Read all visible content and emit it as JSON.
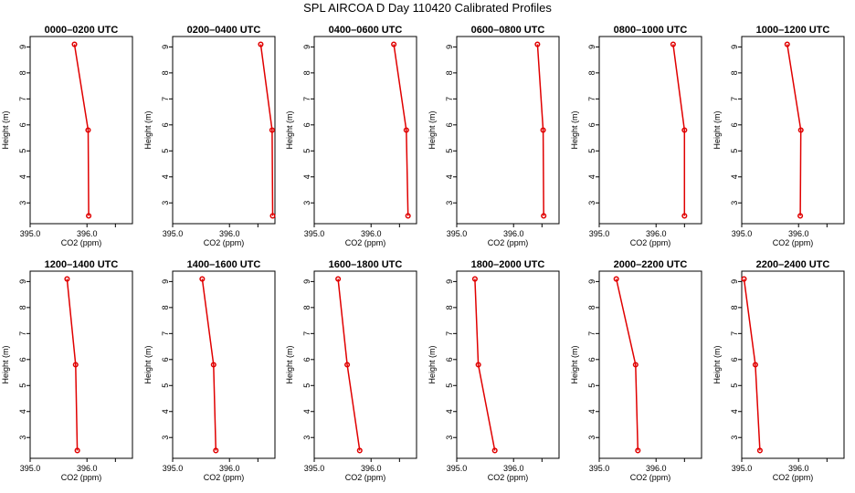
{
  "title": "SPL AIRCOA D  Day 110420  Calibrated Profiles",
  "chart_data": [
    {
      "type": "line",
      "title": "0000–0200 UTC",
      "xlabel": "CO2 (ppm)",
      "ylabel": "Height (m)",
      "xlim": [
        395.0,
        396.8
      ],
      "ylim": [
        2.2,
        9.4
      ],
      "xticks": [
        "395.0",
        "396.0"
      ],
      "yticks": [
        "3",
        "4",
        "5",
        "6",
        "7",
        "8",
        "9"
      ],
      "x": [
        395.78,
        396.02,
        396.03
      ],
      "y": [
        9.1,
        5.8,
        2.5
      ]
    },
    {
      "type": "line",
      "title": "0200–0400 UTC",
      "xlabel": "CO2 (ppm)",
      "ylabel": "Height (m)",
      "xlim": [
        395.0,
        396.8
      ],
      "ylim": [
        2.2,
        9.4
      ],
      "xticks": [
        "395.0",
        "396.0"
      ],
      "yticks": [
        "3",
        "4",
        "5",
        "6",
        "7",
        "8",
        "9"
      ],
      "x": [
        396.55,
        396.75,
        396.76
      ],
      "y": [
        9.1,
        5.8,
        2.5
      ]
    },
    {
      "type": "line",
      "title": "0400–0600 UTC",
      "xlabel": "CO2 (ppm)",
      "ylabel": "Height (m)",
      "xlim": [
        395.0,
        396.8
      ],
      "ylim": [
        2.2,
        9.4
      ],
      "xticks": [
        "395.0",
        "396.0"
      ],
      "yticks": [
        "3",
        "4",
        "5",
        "6",
        "7",
        "8",
        "9"
      ],
      "x": [
        396.4,
        396.62,
        396.65
      ],
      "y": [
        9.1,
        5.8,
        2.5
      ]
    },
    {
      "type": "line",
      "title": "0600–0800 UTC",
      "xlabel": "CO2 (ppm)",
      "ylabel": "Height (m)",
      "xlim": [
        395.0,
        396.8
      ],
      "ylim": [
        2.2,
        9.4
      ],
      "xticks": [
        "395.0",
        "396.0"
      ],
      "yticks": [
        "3",
        "4",
        "5",
        "6",
        "7",
        "8",
        "9"
      ],
      "x": [
        396.42,
        396.52,
        396.53
      ],
      "y": [
        9.1,
        5.8,
        2.5
      ]
    },
    {
      "type": "line",
      "title": "0800–1000 UTC",
      "xlabel": "CO2 (ppm)",
      "ylabel": "Height (m)",
      "xlim": [
        395.0,
        396.8
      ],
      "ylim": [
        2.2,
        9.4
      ],
      "xticks": [
        "395.0",
        "396.0"
      ],
      "yticks": [
        "3",
        "4",
        "5",
        "6",
        "7",
        "8",
        "9"
      ],
      "x": [
        396.3,
        396.5,
        396.5
      ],
      "y": [
        9.1,
        5.8,
        2.5
      ]
    },
    {
      "type": "line",
      "title": "1000–1200 UTC",
      "xlabel": "CO2 (ppm)",
      "ylabel": "Height (m)",
      "xlim": [
        395.0,
        396.8
      ],
      "ylim": [
        2.2,
        9.4
      ],
      "xticks": [
        "395.0",
        "396.0"
      ],
      "yticks": [
        "3",
        "4",
        "5",
        "6",
        "7",
        "8",
        "9"
      ],
      "x": [
        395.8,
        396.04,
        396.03
      ],
      "y": [
        9.1,
        5.8,
        2.5
      ]
    },
    {
      "type": "line",
      "title": "1200–1400 UTC",
      "xlabel": "CO2 (ppm)",
      "ylabel": "Height (m)",
      "xlim": [
        395.0,
        396.8
      ],
      "ylim": [
        2.2,
        9.4
      ],
      "xticks": [
        "395.0",
        "396.0"
      ],
      "yticks": [
        "3",
        "4",
        "5",
        "6",
        "7",
        "8",
        "9"
      ],
      "x": [
        395.65,
        395.8,
        395.83
      ],
      "y": [
        9.1,
        5.8,
        2.5
      ]
    },
    {
      "type": "line",
      "title": "1400–1600 UTC",
      "xlabel": "CO2 (ppm)",
      "ylabel": "Height (m)",
      "xlim": [
        395.0,
        396.8
      ],
      "ylim": [
        2.2,
        9.4
      ],
      "xticks": [
        "395.0",
        "396.0"
      ],
      "yticks": [
        "3",
        "4",
        "5",
        "6",
        "7",
        "8",
        "9"
      ],
      "x": [
        395.52,
        395.72,
        395.76
      ],
      "y": [
        9.1,
        5.8,
        2.5
      ]
    },
    {
      "type": "line",
      "title": "1600–1800 UTC",
      "xlabel": "CO2 (ppm)",
      "ylabel": "Height (m)",
      "xlim": [
        395.0,
        396.8
      ],
      "ylim": [
        2.2,
        9.4
      ],
      "xticks": [
        "395.0",
        "396.0"
      ],
      "yticks": [
        "3",
        "4",
        "5",
        "6",
        "7",
        "8",
        "9"
      ],
      "x": [
        395.42,
        395.58,
        395.8
      ],
      "y": [
        9.1,
        5.8,
        2.5
      ]
    },
    {
      "type": "line",
      "title": "1800–2000 UTC",
      "xlabel": "CO2 (ppm)",
      "ylabel": "Height (m)",
      "xlim": [
        395.0,
        396.8
      ],
      "ylim": [
        2.2,
        9.4
      ],
      "xticks": [
        "395.0",
        "396.0"
      ],
      "yticks": [
        "3",
        "4",
        "5",
        "6",
        "7",
        "8",
        "9"
      ],
      "x": [
        395.32,
        395.38,
        395.67
      ],
      "y": [
        9.1,
        5.8,
        2.5
      ]
    },
    {
      "type": "line",
      "title": "2000–2200 UTC",
      "xlabel": "CO2 (ppm)",
      "ylabel": "Height (m)",
      "xlim": [
        395.0,
        396.8
      ],
      "ylim": [
        2.2,
        9.4
      ],
      "xticks": [
        "395.0",
        "396.0"
      ],
      "yticks": [
        "3",
        "4",
        "5",
        "6",
        "7",
        "8",
        "9"
      ],
      "x": [
        395.3,
        395.64,
        395.68
      ],
      "y": [
        9.1,
        5.8,
        2.5
      ]
    },
    {
      "type": "line",
      "title": "2200–2400 UTC",
      "xlabel": "CO2 (ppm)",
      "ylabel": "Height (m)",
      "xlim": [
        395.0,
        396.8
      ],
      "ylim": [
        2.2,
        9.4
      ],
      "xticks": [
        "395.0",
        "396.0"
      ],
      "yticks": [
        "3",
        "4",
        "5",
        "6",
        "7",
        "8",
        "9"
      ],
      "x": [
        395.04,
        395.24,
        395.32
      ],
      "y": [
        9.1,
        5.8,
        2.5
      ]
    }
  ]
}
